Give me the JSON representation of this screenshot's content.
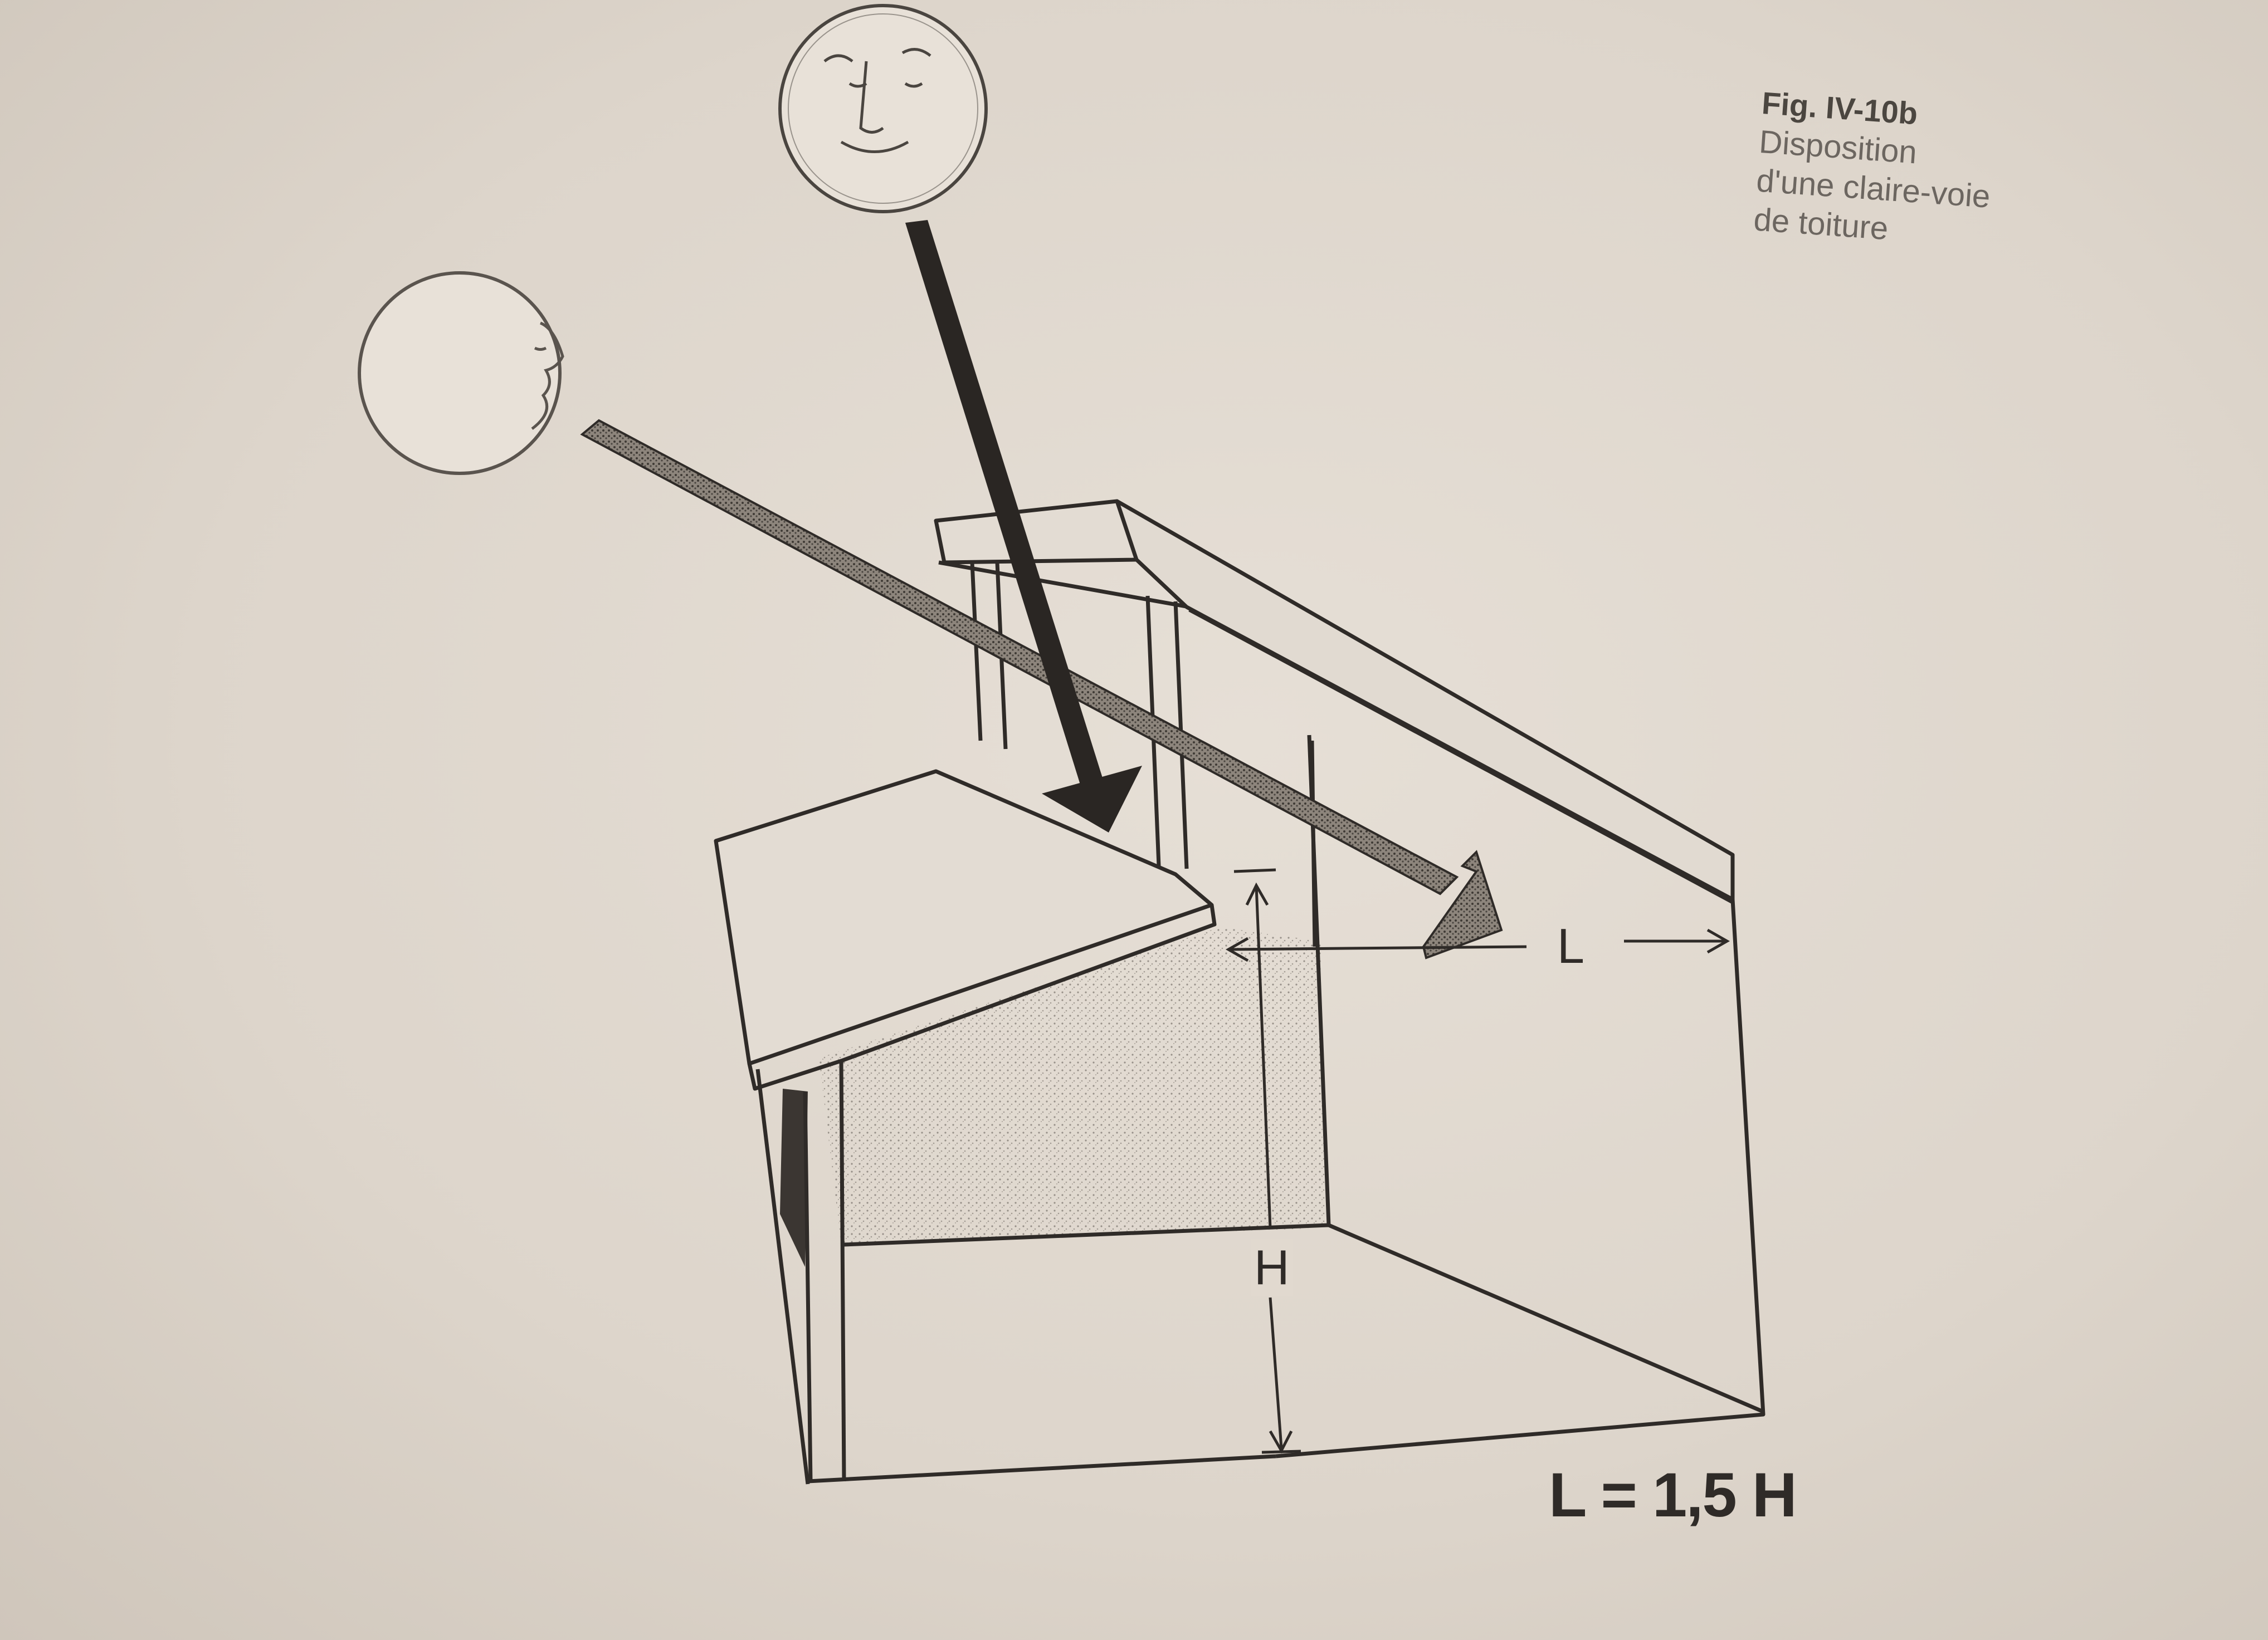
{
  "caption": {
    "figure_number": "Fig. IV-10b",
    "lines": [
      "Disposition",
      "d'une claire-voie",
      "de toiture"
    ]
  },
  "labels": {
    "length": "L",
    "height": "H",
    "formula": "L = 1,5 H"
  },
  "icons": {
    "sun_high": "sun-face-icon",
    "sun_low": "sun-face-profile-icon"
  },
  "colors": {
    "ink": "#2f2b28",
    "paper": "#ddd5cb"
  }
}
